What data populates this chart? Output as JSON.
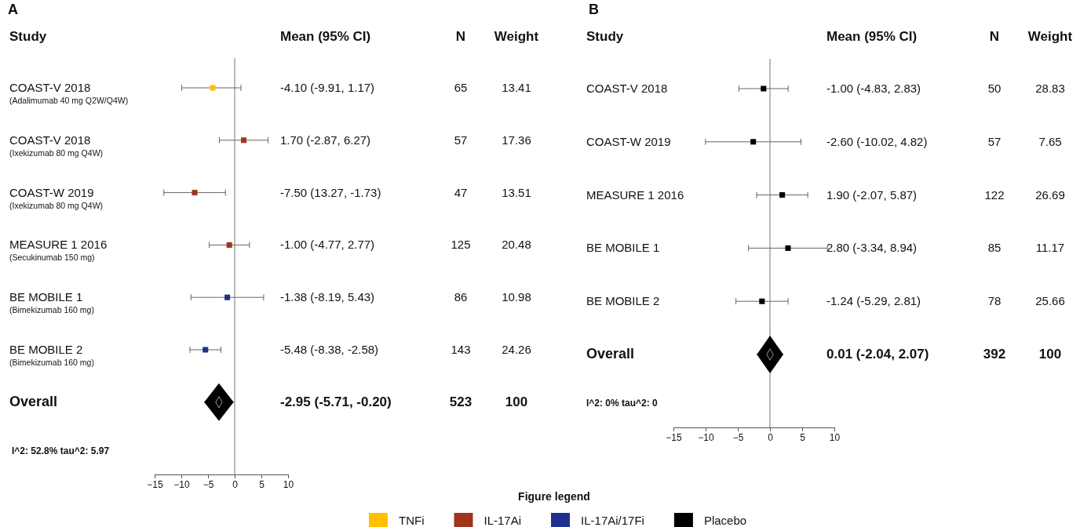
{
  "chart_data": [
    {
      "type": "scatter",
      "orientation": "horizontal",
      "title": "A",
      "ylabel": "Study",
      "legend_title": "Figure legend",
      "legend": "bottom",
      "marker": "square",
      "categories": [
        "COAST-V 2018$_{(Adalimumab 40 mg Q2W/Q4W)}$",
        "COAST-V 2018$_{(Ixekizumab 80 mg Q4W)}$",
        "COAST-W 2019$_{(Ixekizumab 80 mg Q4W)}$",
        "MEASURE 1 2016$_{(Secukinumab 150 mg)}$",
        "BE MOBILE 1$_{(Bimekizumab 160 mg)}$",
        "BE MOBILE 2$_{(Bimekizumab 160 mg)}$",
        "Overall"
      ],
      "series": [
        {
          "name": "TNFi",
          "color": "#ffc000",
          "values": [
            -4.1,
            null,
            null,
            null,
            null,
            null,
            null
          ],
          "errors": [
            [
              -9.91,
              1.17
            ],
            null,
            null,
            null,
            null,
            null,
            null
          ]
        },
        {
          "name": "IL-17Ai",
          "color": "#a0341c",
          "values": [
            null,
            1.7,
            -7.5,
            -1.0,
            null,
            null,
            null
          ],
          "errors": [
            null,
            [
              -2.87,
              6.27
            ],
            [
              -13.27,
              -1.73
            ],
            [
              -4.77,
              2.77
            ],
            null,
            null,
            null
          ]
        },
        {
          "name": "IL-17Ai/17Fi",
          "color": "#1f2f8f",
          "values": [
            null,
            null,
            null,
            null,
            -1.38,
            -5.48,
            null
          ],
          "errors": [
            null,
            null,
            null,
            null,
            [
              -8.19,
              5.43
            ],
            [
              -8.38,
              -2.58
            ],
            null
          ]
        },
        {
          "color": "#000000",
          "marker": "diamond",
          "values": [
            null,
            null,
            null,
            null,
            null,
            null,
            -2.95
          ],
          "errors": [
            null,
            null,
            null,
            null,
            null,
            null,
            [
              -5.71,
              -0.2
            ]
          ]
        }
      ],
      "xlim": [
        -15,
        10
      ],
      "xticks": [
        -15,
        -10,
        -5,
        0,
        5,
        10
      ],
      "ref_lines": [
        {
          "axis": "x",
          "value": 0
        }
      ],
      "annotations": [
        "Mean (95% CI)",
        "N",
        "Weight",
        "-4.10 (-9.91, 1.17)",
        "65",
        "13.41",
        "1.70 (-2.87, 6.27)",
        "57",
        "17.36",
        "-7.50 (13.27, -1.73)",
        "47",
        "13.51",
        "-1.00 (-4.77, 2.77)",
        "125",
        "20.48",
        "-1.38 (-8.19, 5.43)",
        "86",
        "10.98",
        "-5.48 (-8.38, -2.58)",
        "143",
        "24.26",
        "-2.95 (-5.71, -0.20)",
        "523",
        "100",
        "I^2: 52.8% tau^2: 5.97"
      ]
    },
    {
      "type": "scatter",
      "orientation": "horizontal",
      "title": "B",
      "ylabel": "Study",
      "legend": "bottom",
      "marker": "square",
      "categories": [
        "COAST-V 2018",
        "COAST-W 2019",
        "MEASURE 1 2016",
        "BE MOBILE 1",
        "BE MOBILE 2",
        "Overall"
      ],
      "series": [
        {
          "name": "Placebo",
          "color": "#000000",
          "values": [
            -1.0,
            -2.6,
            1.9,
            2.8,
            -1.24,
            null
          ],
          "errors": [
            [
              -4.83,
              2.83
            ],
            [
              -10.02,
              4.82
            ],
            [
              -2.07,
              5.87
            ],
            [
              -3.34,
              8.94
            ],
            [
              -5.29,
              2.81
            ],
            null
          ]
        },
        {
          "color": "#000000",
          "marker": "diamond",
          "values": [
            null,
            null,
            null,
            null,
            null,
            0.01
          ],
          "errors": [
            null,
            null,
            null,
            null,
            null,
            [
              -2.04,
              2.07
            ]
          ]
        }
      ],
      "xlim": [
        -15,
        10
      ],
      "xticks": [
        -15,
        -10,
        -5,
        0,
        5,
        10
      ],
      "ref_lines": [
        {
          "axis": "x",
          "value": 0
        }
      ],
      "annotations": [
        "Mean (95% CI)",
        "N",
        "Weight",
        "-1.00 (-4.83, 2.83)",
        "50",
        "28.83",
        "-2.60 (-10.02, 4.82)",
        "57",
        "7.65",
        "1.90 (-2.07, 5.87)",
        "122",
        "26.69",
        "2.80 (-3.34, 8.94)",
        "85",
        "11.17",
        "-1.24 (-5.29, 2.81)",
        "78",
        "25.66",
        "0.01 (-2.04, 2.07)",
        "392",
        "100",
        "I^2: 0% tau^2: 0"
      ]
    }
  ]
}
